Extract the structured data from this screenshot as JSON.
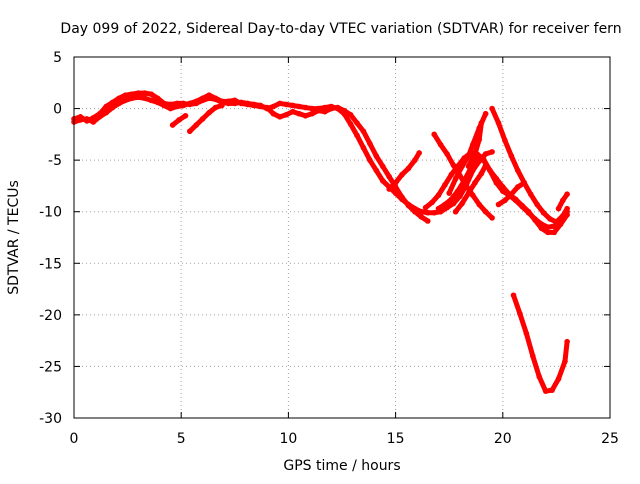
{
  "chart_data": {
    "type": "scatter",
    "title": "Day 099 of 2022, Sidereal Day-to-day VTEC variation (SDTVAR) for receiver fern",
    "xlabel": "GPS time / hours",
    "ylabel": "SDTVAR / TECUs",
    "xlim": [
      0,
      25
    ],
    "ylim": [
      -30,
      5
    ],
    "xticks": [
      0,
      5,
      10,
      15,
      20,
      25
    ],
    "yticks": [
      -30,
      -25,
      -20,
      -15,
      -10,
      -5,
      0,
      5
    ],
    "xtick_labels": [
      "0",
      "5",
      "10",
      "15",
      "20",
      "25"
    ],
    "ytick_labels": [
      "-30",
      "-25",
      "-20",
      "-15",
      "-10",
      "-5",
      "0",
      "5"
    ],
    "grid": true,
    "grid_style": "dotted",
    "legend": "none",
    "series_color": "#ff0000",
    "series": [
      {
        "points": [
          [
            0,
            -1
          ],
          [
            0.3,
            -0.8
          ],
          [
            0.6,
            -1.2
          ],
          [
            0.9,
            -0.9
          ],
          [
            1.2,
            -0.5
          ],
          [
            1.5,
            0.2
          ],
          [
            1.8,
            0.6
          ],
          [
            2.1,
            1.0
          ],
          [
            2.4,
            1.3
          ],
          [
            2.7,
            1.4
          ],
          [
            3.0,
            1.5
          ],
          [
            3.3,
            1.5
          ],
          [
            3.6,
            1.4
          ],
          [
            3.9,
            1.0
          ],
          [
            4.2,
            0.5
          ],
          [
            4.5,
            0.4
          ],
          [
            4.8,
            0.5
          ],
          [
            5.1,
            0.5
          ],
          [
            5.4,
            0.4
          ],
          [
            5.7,
            0.5
          ],
          [
            6.0,
            0.8
          ],
          [
            6.3,
            1.0
          ],
          [
            6.6,
            0.9
          ],
          [
            6.9,
            0.6
          ],
          [
            7.2,
            0.5
          ],
          [
            7.5,
            0.5
          ],
          [
            7.8,
            0.6
          ],
          [
            8.1,
            0.5
          ],
          [
            8.4,
            0.4
          ],
          [
            8.7,
            0.3
          ],
          [
            9.0,
            0.0
          ],
          [
            9.3,
            0.2
          ],
          [
            9.6,
            0.5
          ],
          [
            9.9,
            0.4
          ],
          [
            10.2,
            0.3
          ],
          [
            10.5,
            0.2
          ],
          [
            10.8,
            0.1
          ],
          [
            11.1,
            0.0
          ],
          [
            11.4,
            0.0
          ],
          [
            11.7,
            0.1
          ],
          [
            12.0,
            0.2
          ],
          [
            12.3,
            0.0
          ],
          [
            12.6,
            -0.5
          ],
          [
            12.9,
            -1.5
          ],
          [
            13.2,
            -2.6
          ],
          [
            13.5,
            -3.8
          ],
          [
            13.8,
            -5.0
          ],
          [
            14.1,
            -6.0
          ],
          [
            14.4,
            -7.0
          ],
          [
            14.7,
            -7.6
          ],
          [
            15.0,
            -8.2
          ],
          [
            15.3,
            -8.8
          ],
          [
            15.6,
            -9.3
          ],
          [
            15.9,
            -9.7
          ],
          [
            16.2,
            -10.0
          ],
          [
            16.5,
            -10.1
          ],
          [
            16.8,
            -10.1
          ],
          [
            17.1,
            -10.0
          ],
          [
            17.4,
            -9.6
          ],
          [
            17.7,
            -9.2
          ],
          [
            18.0,
            -8.5
          ],
          [
            18.3,
            -7.4
          ],
          [
            18.6,
            -6.0
          ],
          [
            18.9,
            -5.1
          ],
          [
            19.2,
            -4.4
          ],
          [
            19.5,
            -4.2
          ]
        ]
      },
      {
        "points": [
          [
            0,
            -1.3
          ],
          [
            0.3,
            -1.1
          ],
          [
            0.6,
            -1.0
          ],
          [
            0.9,
            -1.3
          ],
          [
            1.2,
            -0.8
          ],
          [
            1.5,
            -0.4
          ],
          [
            1.8,
            0.1
          ],
          [
            2.1,
            0.5
          ],
          [
            2.4,
            0.8
          ],
          [
            2.7,
            1.0
          ],
          [
            3.0,
            1.1
          ],
          [
            3.3,
            1.0
          ],
          [
            3.6,
            0.8
          ],
          [
            3.9,
            0.6
          ],
          [
            4.2,
            0.3
          ],
          [
            4.5,
            0.0
          ],
          [
            4.8,
            0.2
          ],
          [
            5.1,
            0.3
          ],
          [
            5.4,
            0.5
          ],
          [
            5.7,
            0.7
          ],
          [
            6.0,
            1.0
          ],
          [
            6.3,
            1.3
          ],
          [
            6.6,
            1.0
          ],
          [
            6.9,
            0.7
          ],
          [
            7.2,
            0.7
          ],
          [
            7.5,
            0.8
          ],
          [
            7.8,
            0.5
          ],
          [
            8.1,
            0.4
          ],
          [
            8.4,
            0.3
          ],
          [
            8.7,
            0.2
          ],
          [
            9.0,
            0.1
          ],
          [
            9.3,
            -0.5
          ],
          [
            9.6,
            -0.8
          ],
          [
            9.9,
            -0.6
          ],
          [
            10.2,
            -0.3
          ],
          [
            10.5,
            -0.5
          ],
          [
            10.8,
            -0.7
          ],
          [
            11.1,
            -0.5
          ],
          [
            11.4,
            -0.2
          ],
          [
            11.7,
            -0.3
          ],
          [
            12.0,
            0.0
          ],
          [
            12.3,
            0.1
          ],
          [
            12.6,
            -0.2
          ],
          [
            12.9,
            -0.6
          ],
          [
            13.2,
            -1.4
          ],
          [
            13.5,
            -2.2
          ],
          [
            13.8,
            -3.4
          ],
          [
            14.1,
            -4.6
          ],
          [
            14.4,
            -5.6
          ],
          [
            14.7,
            -6.6
          ],
          [
            15.0,
            -7.6
          ],
          [
            15.3,
            -8.6
          ],
          [
            15.6,
            -9.4
          ],
          [
            15.9,
            -10.0
          ],
          [
            16.2,
            -10.5
          ],
          [
            16.5,
            -10.9
          ]
        ]
      },
      {
        "points": [
          [
            5.4,
            -2.2
          ],
          [
            5.7,
            -1.6
          ],
          [
            6.0,
            -1.0
          ],
          [
            6.3,
            -0.4
          ],
          [
            6.6,
            0.1
          ],
          [
            6.9,
            0.3
          ]
        ]
      },
      {
        "points": [
          [
            4.6,
            -1.6
          ],
          [
            4.9,
            -1.1
          ],
          [
            5.2,
            -0.7
          ]
        ]
      },
      {
        "points": [
          [
            14.7,
            -7.8
          ],
          [
            15.0,
            -7.2
          ],
          [
            15.3,
            -6.4
          ],
          [
            15.6,
            -5.8
          ],
          [
            15.9,
            -5.0
          ],
          [
            16.1,
            -4.3
          ]
        ]
      },
      {
        "points": [
          [
            16.8,
            -2.5
          ],
          [
            17.1,
            -3.5
          ],
          [
            17.4,
            -4.4
          ],
          [
            17.7,
            -5.5
          ],
          [
            18.0,
            -6.5
          ],
          [
            18.3,
            -7.5
          ],
          [
            18.6,
            -8.4
          ],
          [
            18.9,
            -9.3
          ],
          [
            19.2,
            -10.0
          ],
          [
            19.5,
            -10.6
          ]
        ]
      },
      {
        "points": [
          [
            16.4,
            -9.6
          ],
          [
            16.7,
            -9.1
          ],
          [
            17.0,
            -8.4
          ],
          [
            17.3,
            -7.4
          ],
          [
            17.6,
            -6.4
          ],
          [
            17.9,
            -5.6
          ],
          [
            18.2,
            -4.8
          ],
          [
            18.5,
            -4.3
          ],
          [
            18.8,
            -4.4
          ],
          [
            19.1,
            -4.9
          ],
          [
            19.4,
            -6.0
          ],
          [
            19.7,
            -7.2
          ],
          [
            20.0,
            -8.0
          ],
          [
            20.3,
            -8.4
          ],
          [
            20.6,
            -8.9
          ],
          [
            20.9,
            -9.5
          ],
          [
            21.2,
            -10.1
          ],
          [
            21.5,
            -10.7
          ],
          [
            21.8,
            -11.2
          ],
          [
            22.1,
            -11.5
          ],
          [
            22.4,
            -11.4
          ],
          [
            22.7,
            -10.9
          ],
          [
            23.0,
            -10.0
          ]
        ]
      },
      {
        "points": [
          [
            17.0,
            -9.7
          ],
          [
            17.3,
            -9.3
          ],
          [
            17.6,
            -8.8
          ],
          [
            17.9,
            -8.0
          ],
          [
            18.2,
            -7.0
          ],
          [
            18.5,
            -5.8
          ],
          [
            18.8,
            -4.8
          ],
          [
            19.1,
            -5.0
          ],
          [
            19.4,
            -6.0
          ],
          [
            19.7,
            -6.8
          ],
          [
            20.0,
            -7.6
          ],
          [
            20.3,
            -8.3
          ],
          [
            20.6,
            -8.8
          ],
          [
            20.9,
            -9.4
          ],
          [
            21.2,
            -10.0
          ],
          [
            21.5,
            -10.8
          ],
          [
            21.8,
            -11.6
          ],
          [
            22.1,
            -12.0
          ],
          [
            22.4,
            -12.0
          ],
          [
            22.7,
            -11.2
          ],
          [
            23.0,
            -10.3
          ]
        ]
      },
      {
        "points": [
          [
            17.8,
            -10.0
          ],
          [
            18.1,
            -9.2
          ],
          [
            18.4,
            -8.2
          ],
          [
            18.7,
            -7.2
          ],
          [
            19.0,
            -6.3
          ],
          [
            19.2,
            -5.5
          ]
        ]
      },
      {
        "points": [
          [
            17.5,
            -8.2
          ],
          [
            17.8,
            -6.8
          ],
          [
            18.1,
            -5.6
          ],
          [
            18.4,
            -4.6
          ],
          [
            18.6,
            -3.5
          ],
          [
            18.9,
            -1.9
          ],
          [
            19.2,
            -0.5
          ]
        ]
      },
      {
        "points": [
          [
            18.4,
            -5.6
          ],
          [
            18.7,
            -4.4
          ],
          [
            18.9,
            -3.0
          ],
          [
            19.0,
            -1.4
          ]
        ]
      },
      {
        "points": [
          [
            19.5,
            0.0
          ],
          [
            19.8,
            -1.4
          ],
          [
            20.1,
            -3.1
          ],
          [
            20.4,
            -4.6
          ],
          [
            20.7,
            -6.0
          ],
          [
            21.0,
            -7.2
          ],
          [
            21.3,
            -8.3
          ],
          [
            21.6,
            -9.3
          ],
          [
            21.9,
            -10.1
          ],
          [
            22.2,
            -10.7
          ],
          [
            22.5,
            -11.0
          ],
          [
            22.8,
            -10.4
          ],
          [
            23.0,
            -9.7
          ]
        ]
      },
      {
        "points": [
          [
            19.8,
            -9.3
          ],
          [
            20.1,
            -8.9
          ],
          [
            20.4,
            -8.3
          ],
          [
            20.7,
            -7.6
          ],
          [
            21.0,
            -7.2
          ]
        ]
      },
      {
        "points": [
          [
            22.6,
            -9.7
          ],
          [
            22.8,
            -8.9
          ],
          [
            23.0,
            -8.3
          ]
        ]
      },
      {
        "points": [
          [
            20.5,
            -18.1
          ],
          [
            20.8,
            -19.9
          ],
          [
            21.1,
            -21.8
          ],
          [
            21.4,
            -24.0
          ],
          [
            21.7,
            -26.0
          ],
          [
            22.0,
            -27.4
          ],
          [
            22.3,
            -27.3
          ],
          [
            22.6,
            -26.2
          ],
          [
            22.9,
            -24.5
          ],
          [
            23.0,
            -22.6
          ]
        ]
      }
    ]
  }
}
